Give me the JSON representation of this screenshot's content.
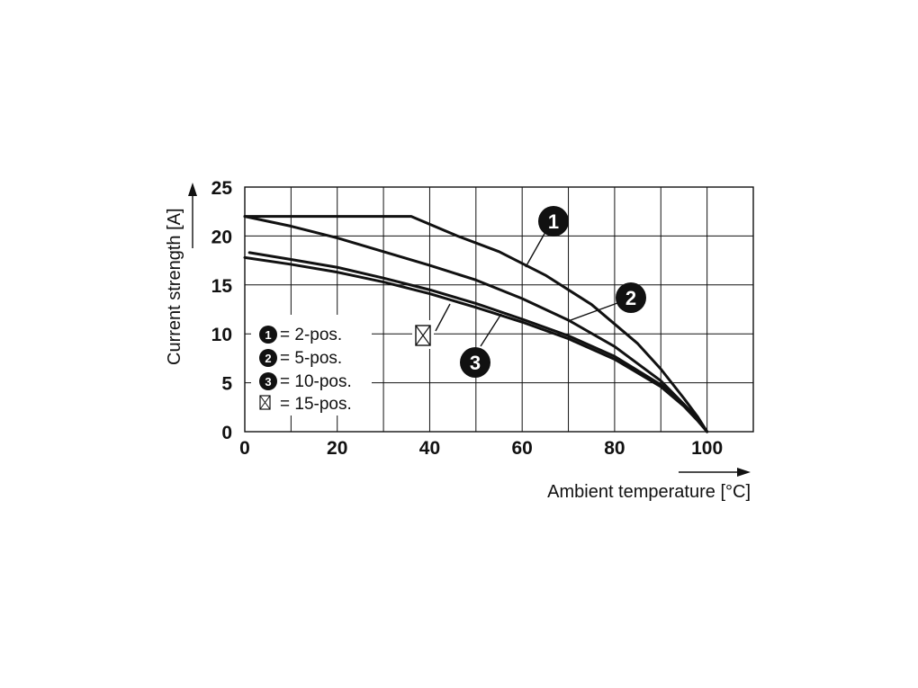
{
  "chart_data": {
    "type": "line",
    "xlabel": "Ambient temperature [°C]",
    "ylabel": "Current strength [A]",
    "xlim": [
      0,
      110
    ],
    "ylim": [
      0,
      25
    ],
    "x_ticks": [
      "0",
      "20",
      "40",
      "60",
      "80",
      "100"
    ],
    "y_ticks": [
      "0",
      "5",
      "10",
      "15",
      "20",
      "25"
    ],
    "grid": true,
    "series": [
      {
        "marker": "1",
        "x": [
          0,
          36,
          46,
          55,
          65,
          75,
          85,
          90,
          95,
          98,
          100
        ],
        "y": [
          22,
          22,
          20,
          18.4,
          16,
          13,
          9,
          6.4,
          3.4,
          1.5,
          0
        ]
      },
      {
        "marker": "2",
        "x": [
          0,
          10,
          20,
          30,
          40,
          50,
          60,
          70,
          80,
          90,
          95,
          98,
          100
        ],
        "y": [
          22,
          21,
          19.8,
          18.4,
          17,
          15.5,
          13.6,
          11.4,
          8.7,
          5.2,
          2.8,
          1.3,
          0
        ]
      },
      {
        "marker": "3",
        "x": [
          1,
          10,
          20,
          30,
          40,
          50,
          60,
          70,
          80,
          90,
          95,
          98,
          100
        ],
        "y": [
          18.3,
          17.6,
          16.8,
          15.7,
          14.5,
          13.1,
          11.5,
          9.8,
          7.7,
          4.8,
          2.8,
          1.2,
          0
        ]
      },
      {
        "marker": "15-pos",
        "x": [
          0,
          10,
          20,
          30,
          40,
          50,
          60,
          70,
          80,
          90,
          95,
          98,
          100
        ],
        "y": [
          17.8,
          17.1,
          16.3,
          15.3,
          14.1,
          12.7,
          11.2,
          9.5,
          7.4,
          4.6,
          2.6,
          1.1,
          0
        ]
      }
    ],
    "legend": {
      "placement": "bottom-left",
      "entries": [
        {
          "symbol": "1",
          "label": "= 2-pos."
        },
        {
          "symbol": "2",
          "label": "= 5-pos."
        },
        {
          "symbol": "3",
          "label": "= 10-pos."
        },
        {
          "symbol": "boxed-x",
          "label": "= 15-pos."
        }
      ]
    }
  }
}
